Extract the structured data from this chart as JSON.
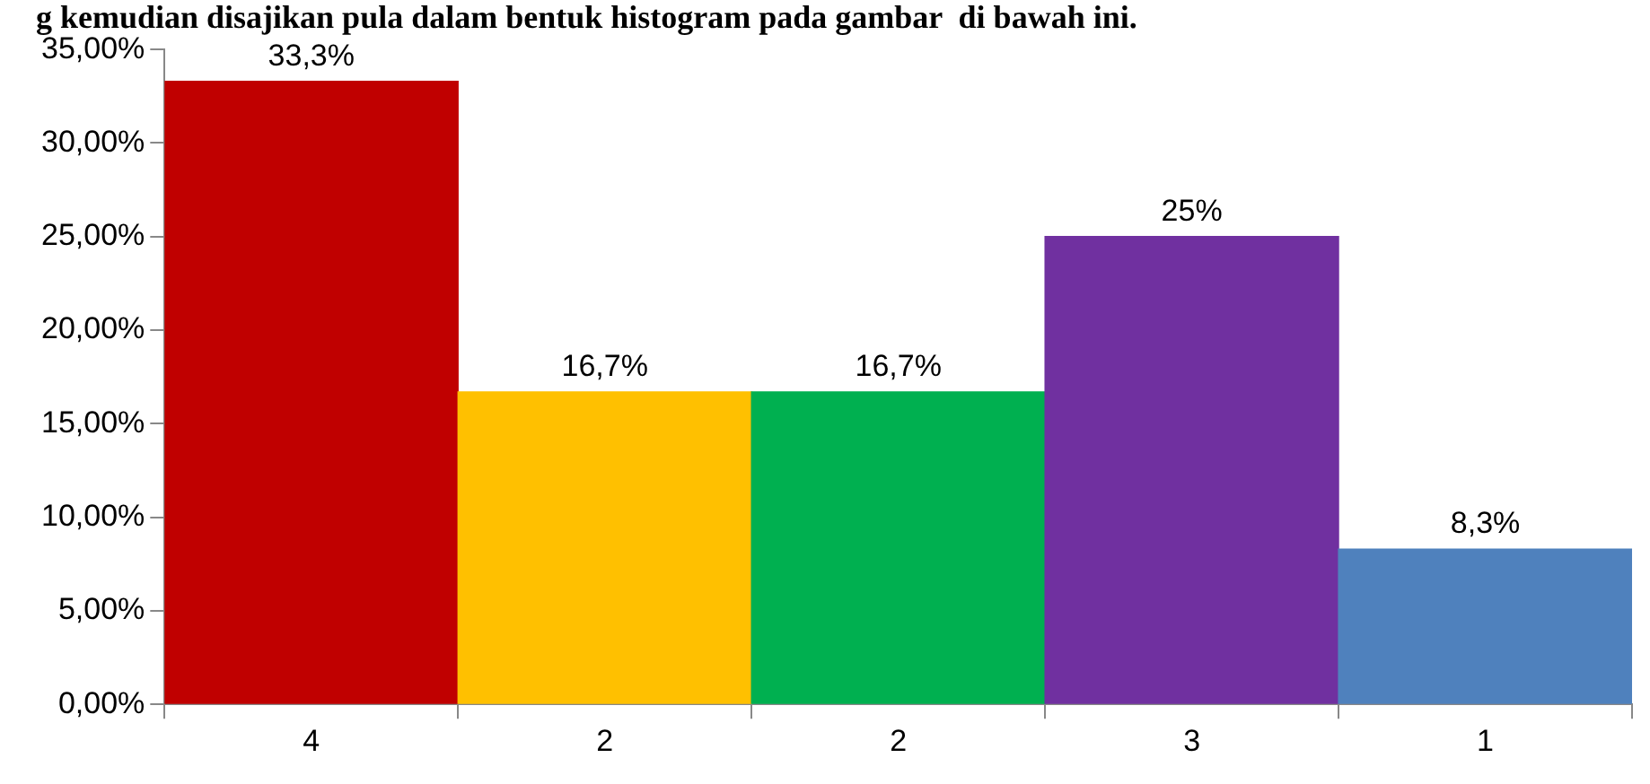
{
  "chart_data": {
    "type": "bar",
    "title": "g kemudian disajikan pula dalam bentuk histogram pada gambar  di bawah ini.",
    "categories": [
      "4",
      "2",
      "2",
      "3",
      "1"
    ],
    "values": [
      33.3,
      16.7,
      16.7,
      25,
      8.3
    ],
    "colors": [
      "#c00000",
      "#ffc000",
      "#00b050",
      "#7030a0",
      "#4f81bd"
    ],
    "value_labels": [
      "33,3%",
      "16,7%",
      "16,7%",
      "25%",
      "8,3%"
    ],
    "ylim": [
      0,
      35
    ],
    "yticks": [
      {
        "value": 0,
        "label": "0,00%"
      },
      {
        "value": 5,
        "label": "5,00%"
      },
      {
        "value": 10,
        "label": "10,00%"
      },
      {
        "value": 15,
        "label": "15,00%"
      },
      {
        "value": 20,
        "label": "20,00%"
      },
      {
        "value": 25,
        "label": "25,00%"
      },
      {
        "value": 30,
        "label": "30,00%"
      },
      {
        "value": 35,
        "label": "35,00%"
      }
    ],
    "grid": false,
    "legend": false
  }
}
